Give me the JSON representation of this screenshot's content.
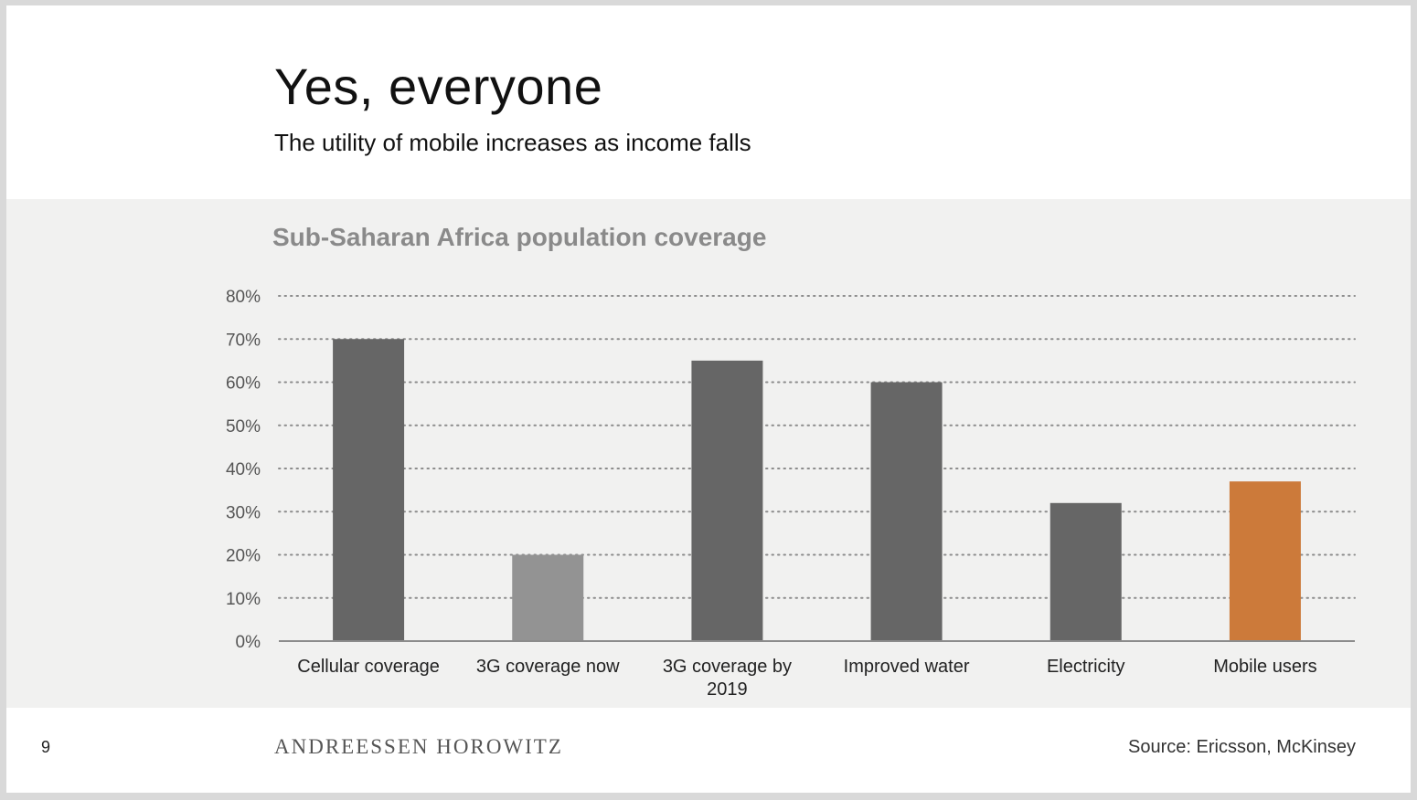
{
  "slide": {
    "title": "Yes, everyone",
    "subtitle": "The utility of mobile increases as income falls",
    "page_number": "9",
    "brand": "ANDREESSEN HOROWITZ",
    "source": "Source: Ericsson, McKinsey"
  },
  "chart_data": {
    "type": "bar",
    "title": "Sub-Saharan Africa population coverage",
    "categories": [
      [
        "Cellular coverage"
      ],
      [
        "3G coverage now"
      ],
      [
        "3G coverage by",
        "2019"
      ],
      [
        "Improved water"
      ],
      [
        "Electricity"
      ],
      [
        "Mobile users"
      ]
    ],
    "values": [
      70,
      20,
      65,
      60,
      32,
      37
    ],
    "bar_colors": [
      "#666666",
      "#939393",
      "#666666",
      "#666666",
      "#666666",
      "#cc7a3a"
    ],
    "ylim": [
      0,
      80
    ],
    "yticks": [
      0,
      10,
      20,
      30,
      40,
      50,
      60,
      70,
      80
    ],
    "ytick_labels": [
      "0%",
      "10%",
      "20%",
      "30%",
      "40%",
      "50%",
      "60%",
      "70%",
      "80%"
    ],
    "grid": "dotted horizontal",
    "xlabel": "",
    "ylabel": ""
  }
}
